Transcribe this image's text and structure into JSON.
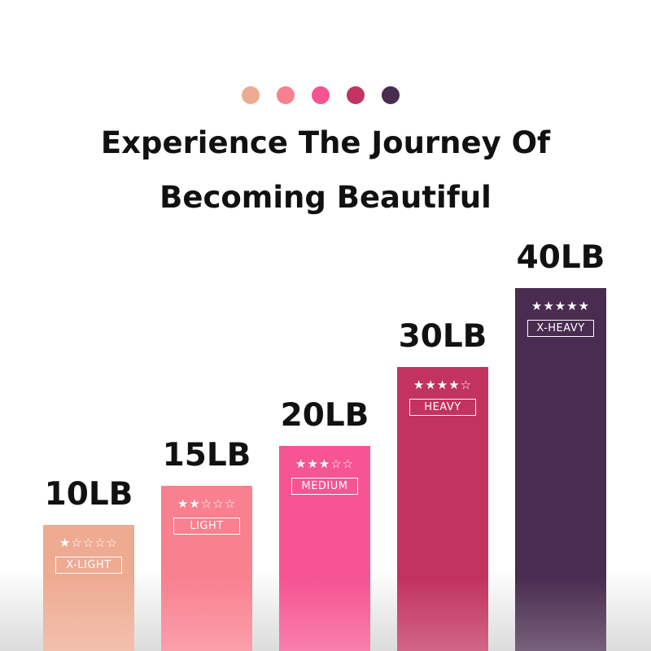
{
  "title_lines": [
    "Experience The Journey Of",
    "Becoming Beautiful"
  ],
  "dot_colors": [
    "#eeab92",
    "#f9808f",
    "#f65492",
    "#c2335f",
    "#4a2c50"
  ],
  "chart_data": {
    "type": "bar",
    "categories": [
      "10LB",
      "15LB",
      "20LB",
      "30LB",
      "40LB"
    ],
    "values": [
      10,
      15,
      20,
      30,
      40
    ],
    "ratings": [
      1,
      2,
      3,
      4,
      5
    ],
    "levels": [
      "X-LIGHT",
      "LIGHT",
      "MEDIUM",
      "HEAVY",
      "X-HEAVY"
    ],
    "colors": [
      "#eeab92",
      "#f9808f",
      "#f65492",
      "#c2335f",
      "#4a2c50"
    ],
    "title": "Experience The Journey Of Becoming Beautiful",
    "xlabel": "",
    "ylabel": ""
  }
}
